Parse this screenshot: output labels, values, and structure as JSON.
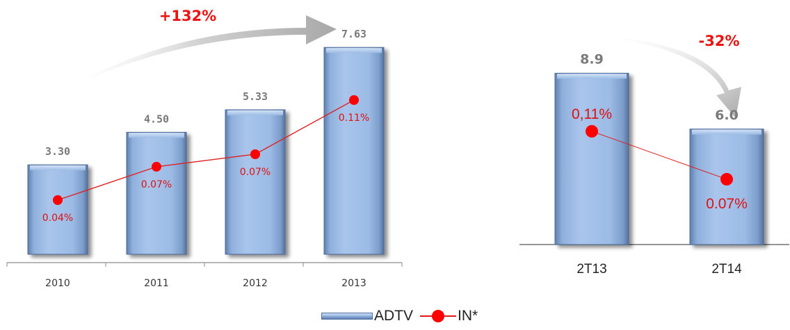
{
  "colors": {
    "bar_face": "#9bbbe5",
    "bar_edge": "#4e6a96",
    "line": "#e02020",
    "marker": "#ff0000",
    "growth_label": "#ee1111",
    "value_label": "#7a7a7a",
    "arrow": "#b8b8b8"
  },
  "legend": {
    "bar_label": "ADTV",
    "line_label": "IN*"
  },
  "chart_data": [
    {
      "type": "bar",
      "categories": [
        "2010",
        "2011",
        "2012",
        "2013"
      ],
      "value_labels": [
        "3.30",
        "4.50",
        "5.33",
        "7.63"
      ],
      "growth_label": "+132%",
      "series": [
        {
          "name": "ADTV",
          "type": "bar",
          "values": [
            3.3,
            4.5,
            5.33,
            7.63
          ]
        },
        {
          "name": "IN*",
          "type": "line",
          "values": [
            0.04,
            0.07,
            0.07,
            0.11
          ],
          "labels": [
            "0.04%",
            "0.07%",
            "0.07%",
            "0.11%"
          ]
        }
      ],
      "ylim": [
        0,
        8.2
      ],
      "grid": false
    },
    {
      "type": "bar",
      "categories": [
        "2T13",
        "2T14"
      ],
      "value_labels": [
        "8.9",
        "6.0"
      ],
      "growth_label": "-32%",
      "series": [
        {
          "name": "ADTV",
          "type": "bar",
          "values": [
            8.9,
            6.0
          ]
        },
        {
          "name": "IN*",
          "type": "line",
          "values": [
            0.11,
            0.07
          ],
          "labels": [
            "0,11%",
            "0.07%"
          ]
        }
      ],
      "ylim": [
        0,
        9.6
      ],
      "grid": false
    }
  ]
}
